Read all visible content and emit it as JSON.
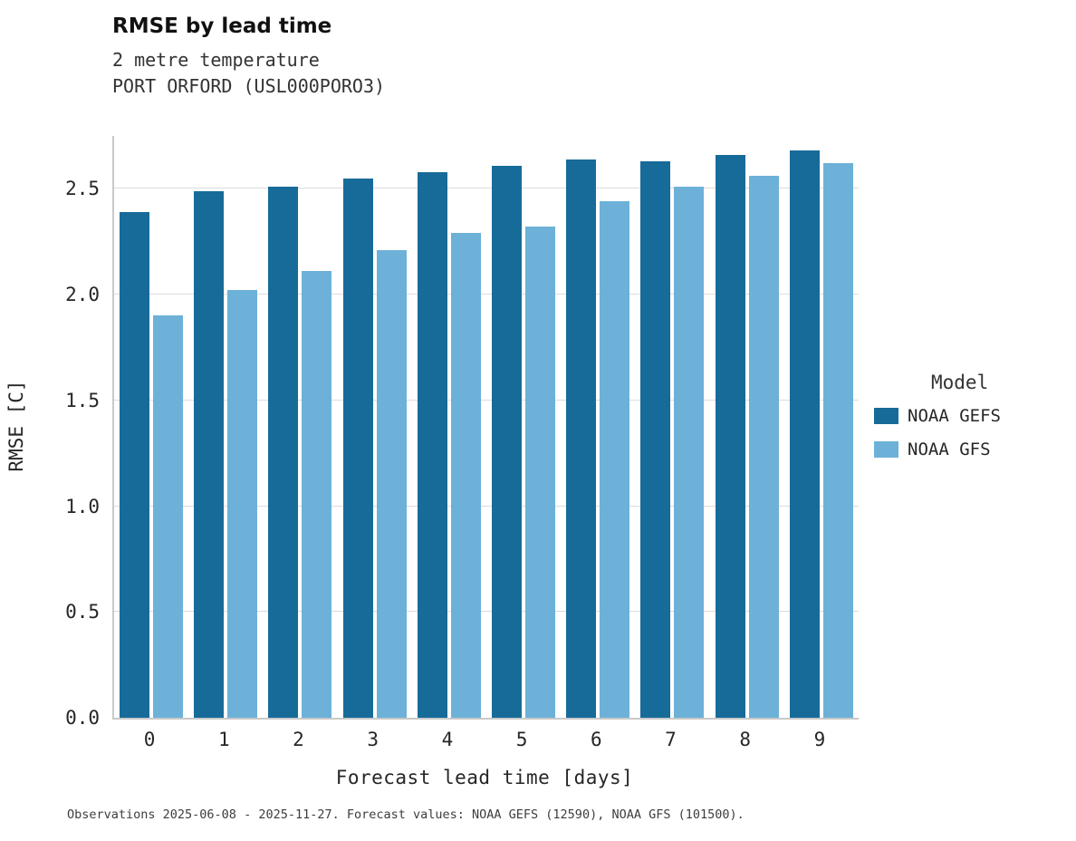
{
  "chart_data": {
    "type": "bar",
    "title": "RMSE by lead time",
    "subtitle": [
      "2 metre temperature",
      "PORT ORFORD (USL000PORO3)"
    ],
    "xlabel": "Forecast lead time [days]",
    "ylabel": "RMSE [C]",
    "categories": [
      "0",
      "1",
      "2",
      "3",
      "4",
      "5",
      "6",
      "7",
      "8",
      "9"
    ],
    "series": [
      {
        "name": "NOAA GEFS",
        "color": "#176b99",
        "values": [
          2.39,
          2.49,
          2.51,
          2.55,
          2.58,
          2.61,
          2.64,
          2.63,
          2.66,
          2.68
        ]
      },
      {
        "name": "NOAA GFS",
        "color": "#6db1d8",
        "values": [
          1.9,
          2.02,
          2.11,
          2.21,
          2.29,
          2.32,
          2.44,
          2.51,
          2.56,
          2.62
        ]
      }
    ],
    "ytick_labels": [
      "0.0",
      "0.5",
      "1.0",
      "1.5",
      "2.0",
      "2.5"
    ],
    "ylim": [
      0,
      2.75
    ],
    "grid": true,
    "legend_title": "Model",
    "legend_position": "right"
  },
  "footer": {
    "text": "Observations 2025-06-08 - 2025-11-27. Forecast values: NOAA GEFS (12590), NOAA GFS (101500)."
  }
}
